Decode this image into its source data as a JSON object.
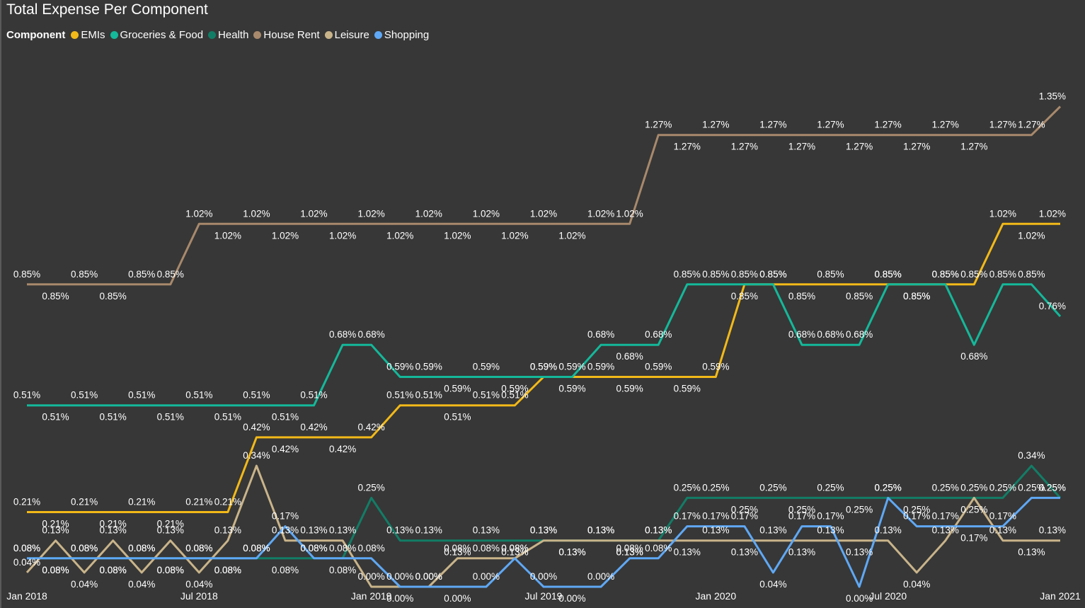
{
  "chart_data": {
    "type": "line",
    "title": "Total Expense Per Component",
    "legend_title": "Component",
    "legend_position": "top-left",
    "grid": false,
    "x": [
      "Jan 2018",
      "Feb 2018",
      "Mar 2018",
      "Apr 2018",
      "May 2018",
      "Jun 2018",
      "Jul 2018",
      "Aug 2018",
      "Sep 2018",
      "Oct 2018",
      "Nov 2018",
      "Dec 2018",
      "Jan 2019",
      "Feb 2019",
      "Mar 2019",
      "Apr 2019",
      "May 2019",
      "Jun 2019",
      "Jul 2019",
      "Aug 2019",
      "Sep 2019",
      "Oct 2019",
      "Nov 2019",
      "Dec 2019",
      "Jan 2020",
      "Feb 2020",
      "Mar 2020",
      "Apr 2020",
      "May 2020",
      "Jun 2020",
      "Jul 2020",
      "Aug 2020",
      "Sep 2020",
      "Oct 2020",
      "Nov 2020",
      "Dec 2020",
      "Jan 2021"
    ],
    "x_ticks": [
      "Jan 2018",
      "Jul 2018",
      "Jan 2019",
      "Jul 2019",
      "Jan 2020",
      "Jul 2020",
      "Jan 2021"
    ],
    "y_unit": "%",
    "ylim": [
      0,
      1.45
    ],
    "series": [
      {
        "name": "EMIs",
        "color": "#F2B918",
        "values": [
          0.21,
          0.21,
          0.21,
          0.21,
          0.21,
          0.21,
          0.21,
          0.21,
          0.42,
          0.42,
          0.42,
          0.42,
          0.42,
          0.51,
          0.51,
          0.51,
          0.51,
          0.51,
          0.59,
          0.59,
          0.59,
          0.59,
          0.59,
          0.59,
          0.59,
          0.85,
          0.85,
          0.85,
          0.85,
          0.85,
          0.85,
          0.85,
          0.85,
          0.85,
          1.02,
          1.02,
          1.02
        ]
      },
      {
        "name": "Groceries & Food",
        "color": "#14B89A",
        "values": [
          0.51,
          0.51,
          0.51,
          0.51,
          0.51,
          0.51,
          0.51,
          0.51,
          0.51,
          0.51,
          0.51,
          0.68,
          0.68,
          0.59,
          0.59,
          0.59,
          0.59,
          0.59,
          0.59,
          0.59,
          0.68,
          0.68,
          0.68,
          0.85,
          0.85,
          0.85,
          0.85,
          0.68,
          0.68,
          0.68,
          0.85,
          0.85,
          0.85,
          0.68,
          0.85,
          0.85,
          0.76
        ]
      },
      {
        "name": "Health",
        "color": "#127D66",
        "values": [
          0.08,
          0.08,
          0.08,
          0.08,
          0.08,
          0.08,
          0.08,
          0.08,
          0.08,
          0.08,
          0.08,
          0.08,
          0.25,
          0.13,
          0.13,
          0.13,
          0.13,
          0.13,
          0.13,
          0.13,
          0.13,
          0.13,
          0.13,
          0.25,
          0.25,
          0.25,
          0.25,
          0.25,
          0.25,
          0.25,
          0.25,
          0.25,
          0.25,
          0.25,
          0.25,
          0.34,
          0.25
        ]
      },
      {
        "name": "House Rent",
        "color": "#A8896C",
        "values": [
          0.85,
          0.85,
          0.85,
          0.85,
          0.85,
          0.85,
          1.02,
          1.02,
          1.02,
          1.02,
          1.02,
          1.02,
          1.02,
          1.02,
          1.02,
          1.02,
          1.02,
          1.02,
          1.02,
          1.02,
          1.02,
          1.02,
          1.27,
          1.27,
          1.27,
          1.27,
          1.27,
          1.27,
          1.27,
          1.27,
          1.27,
          1.27,
          1.27,
          1.27,
          1.27,
          1.27,
          1.35
        ]
      },
      {
        "name": "Leisure",
        "color": "#C9B48A",
        "values": [
          0.04,
          0.13,
          0.04,
          0.13,
          0.04,
          0.13,
          0.04,
          0.13,
          0.34,
          0.13,
          0.13,
          0.13,
          0.0,
          0.0,
          0.0,
          0.08,
          0.08,
          0.08,
          0.13,
          0.13,
          0.13,
          0.13,
          0.13,
          0.13,
          0.13,
          0.13,
          0.13,
          0.13,
          0.13,
          0.13,
          0.13,
          0.04,
          0.13,
          0.25,
          0.13,
          0.13,
          0.13
        ]
      },
      {
        "name": "Shopping",
        "color": "#5FA8F5",
        "values": [
          0.08,
          0.08,
          0.08,
          0.08,
          0.08,
          0.08,
          0.08,
          0.08,
          0.08,
          0.17,
          0.08,
          0.08,
          0.08,
          0.0,
          0.0,
          0.0,
          0.0,
          0.08,
          0.0,
          0.0,
          0.0,
          0.08,
          0.08,
          0.17,
          0.17,
          0.17,
          0.04,
          0.17,
          0.17,
          0.0,
          0.25,
          0.17,
          0.17,
          0.17,
          0.17,
          0.25,
          0.25
        ]
      }
    ]
  }
}
